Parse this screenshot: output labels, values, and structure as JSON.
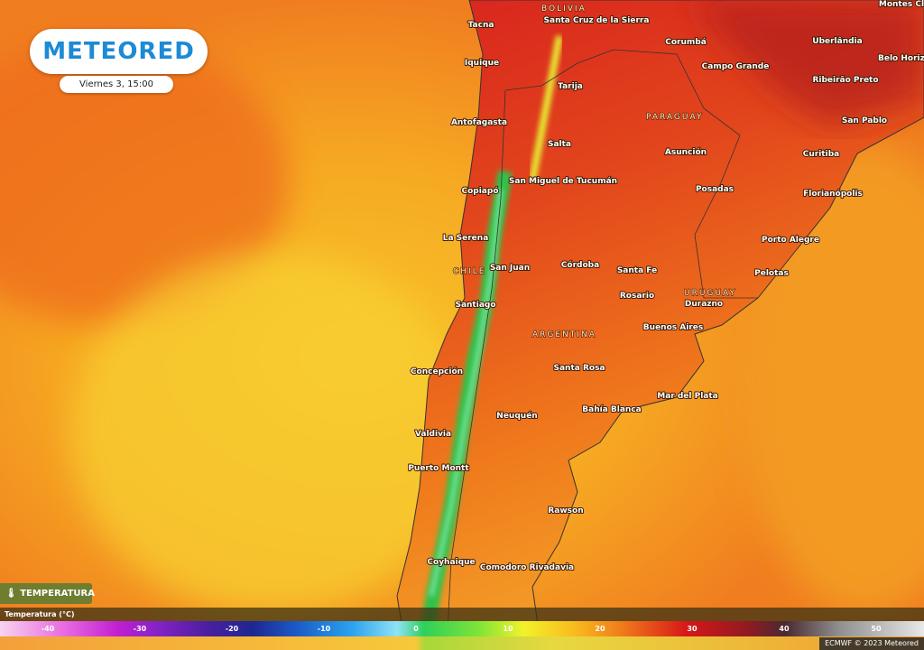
{
  "header": {
    "logo": "METEORED",
    "datetime": "Viernes 3, 15:00"
  },
  "map": {
    "countries": [
      "BOLIVIA",
      "PARAGUAY",
      "CHILE",
      "URUGUAY",
      "ARGENTINA"
    ],
    "cities": [
      "Tacna",
      "Santa Cruz de la Sierra",
      "Corumbá",
      "Uberlândia",
      "Montes Cla",
      "Belo Horizo",
      "Iquique",
      "Campo Grande",
      "Ribeirão Preto",
      "Tarija",
      "Antofagasta",
      "San Pablo",
      "Salta",
      "Asunción",
      "Curitiba",
      "San Miguel de Tucumán",
      "Copiapó",
      "Posadas",
      "Florianópolis",
      "La Serena",
      "Porto Alegre",
      "San Juan",
      "Córdoba",
      "Santa Fe",
      "Pelotas",
      "Rosario",
      "Durazno",
      "Santiago",
      "Buenos Aires",
      "Santa Rosa",
      "Concepción",
      "Mar del Plata",
      "Bahía Blanca",
      "Neuquén",
      "Valdivia",
      "Puerto Montt",
      "Rawson",
      "Coyhaique",
      "Comodoro Rivadavia"
    ]
  },
  "legend": {
    "badge": "TEMPERATURA",
    "title": "Temperatura (°C)",
    "ticks": [
      -40,
      -30,
      -20,
      -10,
      0,
      10,
      20,
      30,
      40,
      50
    ]
  },
  "credit": "ECMWF © 2023 Meteored"
}
